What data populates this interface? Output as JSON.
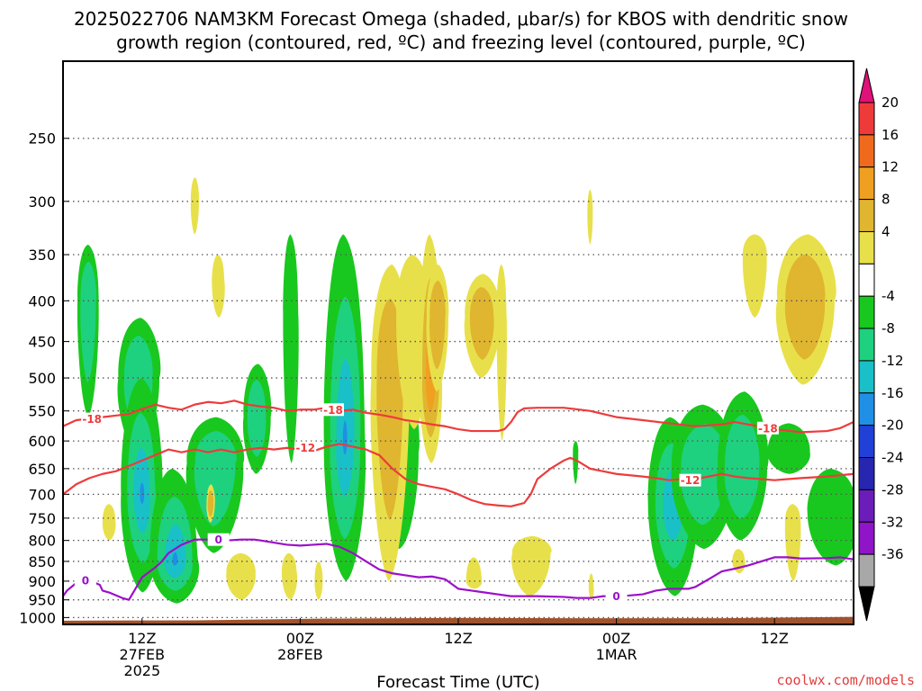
{
  "title_line1": "2025022706 NAM3KM Forecast Omega (shaded, μbar/s) for KBOS with dendritic snow",
  "title_line2": "growth region (contoured, red, ºC) and freezing level (contoured, purple, ºC)",
  "xlabel": "Forecast Time (UTC)",
  "credit": "coolwx.com/models",
  "chart_data": {
    "type": "heatmap",
    "y_scale": "log-pressure",
    "y_ticks": [
      250,
      300,
      350,
      400,
      450,
      500,
      550,
      600,
      650,
      700,
      750,
      800,
      850,
      900,
      950,
      1000
    ],
    "y_range": [
      200,
      1020
    ],
    "x_range_hours": [
      0,
      60
    ],
    "x_ticks": [
      {
        "hour": 6,
        "lines": [
          "12Z",
          "27FEB",
          "2025"
        ]
      },
      {
        "hour": 18,
        "lines": [
          "00Z",
          "28FEB"
        ]
      },
      {
        "hour": 30,
        "lines": [
          "12Z"
        ]
      },
      {
        "hour": 42,
        "lines": [
          "00Z",
          "1MAR"
        ]
      },
      {
        "hour": 54,
        "lines": [
          "12Z"
        ]
      }
    ],
    "colorbar": {
      "labels": [
        "20",
        "16",
        "12",
        "8",
        "4",
        "-4",
        "-8",
        "-12",
        "-16",
        "-20",
        "-24",
        "-28",
        "-32",
        "-36"
      ],
      "colors": [
        "#e0117a",
        "#ef3a3a",
        "#f06a1e",
        "#f0a020",
        "#e0b530",
        "#e8e04a",
        "#ffffff",
        "#19c81e",
        "#1ed17f",
        "#19c0c8",
        "#2090e6",
        "#2040d8",
        "#2626b0",
        "#6a1db8",
        "#9014c8",
        "#a8a8a8",
        "#000000"
      ]
    },
    "contours": {
      "dgz": {
        "color": "#ee3b3b",
        "labels": [
          "-18",
          "-18",
          "-18",
          "-12",
          "-12"
        ]
      },
      "freezing": {
        "color": "#9b10c8",
        "labels": [
          "0",
          "0",
          "0"
        ]
      }
    },
    "upward_motion_blobs": [
      {
        "hour": 1.9,
        "p": 400,
        "hw": 0.8,
        "p_top": 340,
        "p_bot": 560,
        "mag": 7
      },
      {
        "hour": 5.7,
        "p": 500,
        "hw": 1.5,
        "p_top": 420,
        "p_bot": 620,
        "mag": 7
      },
      {
        "hour": 6.0,
        "p": 700,
        "hw": 1.6,
        "p_top": 500,
        "p_bot": 930,
        "mag": 10
      },
      {
        "hour": 8.5,
        "p": 850,
        "hw": 1.9,
        "p_top": 650,
        "p_bot": 960,
        "mag": 10
      },
      {
        "hour": 11.5,
        "p": 640,
        "hw": 2.1,
        "p_top": 560,
        "p_bot": 830,
        "mag": 6
      },
      {
        "hour": 14.7,
        "p": 560,
        "hw": 1.0,
        "p_top": 480,
        "p_bot": 660,
        "mag": 6
      },
      {
        "hour": 17.3,
        "p": 420,
        "hw": 0.6,
        "p_top": 330,
        "p_bot": 640,
        "mag": 5
      },
      {
        "hour": 21.4,
        "p": 600,
        "hw": 1.6,
        "p_top": 330,
        "p_bot": 900,
        "mag": 11
      },
      {
        "hour": 25.6,
        "p": 620,
        "hw": 1.3,
        "p_top": 500,
        "p_bot": 820,
        "mag": 5
      },
      {
        "hour": 38.9,
        "p": 620,
        "hw": 0.2,
        "p_top": 600,
        "p_bot": 680,
        "mag": 5
      },
      {
        "hour": 46.3,
        "p": 720,
        "hw": 1.9,
        "p_top": 560,
        "p_bot": 940,
        "mag": 8
      },
      {
        "hour": 48.6,
        "p": 650,
        "hw": 2.4,
        "p_top": 540,
        "p_bot": 820,
        "mag": 6
      },
      {
        "hour": 51.5,
        "p": 650,
        "hw": 1.8,
        "p_top": 520,
        "p_bot": 800,
        "mag": 7
      },
      {
        "hour": 55.1,
        "p": 620,
        "hw": 1.6,
        "p_top": 570,
        "p_bot": 660,
        "mag": 5
      },
      {
        "hour": 58.5,
        "p": 740,
        "hw": 2.0,
        "p_top": 650,
        "p_bot": 860,
        "mag": 5
      }
    ],
    "downward_motion_blobs": [
      {
        "hour": 10.0,
        "p": 300,
        "hw": 0.3,
        "p_top": 280,
        "p_bot": 330,
        "mag": 5
      },
      {
        "hour": 11.8,
        "p": 380,
        "hw": 0.5,
        "p_top": 350,
        "p_bot": 420,
        "mag": 5
      },
      {
        "hour": 3.5,
        "p": 760,
        "hw": 0.5,
        "p_top": 720,
        "p_bot": 800,
        "mag": 5
      },
      {
        "hour": 11.2,
        "p": 720,
        "hw": 0.3,
        "p_top": 680,
        "p_bot": 760,
        "mag": 6
      },
      {
        "hour": 13.5,
        "p": 880,
        "hw": 1.1,
        "p_top": 830,
        "p_bot": 950,
        "mag": 5
      },
      {
        "hour": 17.2,
        "p": 880,
        "hw": 0.6,
        "p_top": 830,
        "p_bot": 950,
        "mag": 5
      },
      {
        "hour": 19.4,
        "p": 900,
        "hw": 0.3,
        "p_top": 850,
        "p_bot": 950,
        "mag": 5
      },
      {
        "hour": 24.8,
        "p": 500,
        "hw": 1.4,
        "p_top": 360,
        "p_bot": 900,
        "mag": 7
      },
      {
        "hour": 26.6,
        "p": 420,
        "hw": 1.3,
        "p_top": 350,
        "p_bot": 580,
        "mag": 5
      },
      {
        "hour": 27.9,
        "p": 500,
        "hw": 0.9,
        "p_top": 330,
        "p_bot": 640,
        "mag": 9
      },
      {
        "hour": 28.4,
        "p": 420,
        "hw": 0.8,
        "p_top": 360,
        "p_bot": 520,
        "mag": 6
      },
      {
        "hour": 31.8,
        "p": 420,
        "hw": 1.3,
        "p_top": 370,
        "p_bot": 500,
        "mag": 6
      },
      {
        "hour": 33.3,
        "p": 420,
        "hw": 0.4,
        "p_top": 360,
        "p_bot": 600,
        "mag": 5
      },
      {
        "hour": 31.2,
        "p": 900,
        "hw": 0.6,
        "p_top": 840,
        "p_bot": 920,
        "mag": 5
      },
      {
        "hour": 35.5,
        "p": 830,
        "hw": 1.4,
        "p_top": 790,
        "p_bot": 940,
        "mag": 5
      },
      {
        "hour": 40.0,
        "p": 310,
        "hw": 0.2,
        "p_top": 290,
        "p_bot": 340,
        "mag": 5
      },
      {
        "hour": 40.1,
        "p": 920,
        "hw": 0.2,
        "p_top": 880,
        "p_bot": 950,
        "mag": 5
      },
      {
        "hour": 52.5,
        "p": 350,
        "hw": 0.9,
        "p_top": 330,
        "p_bot": 420,
        "mag": 5
      },
      {
        "hour": 56.3,
        "p": 400,
        "hw": 2.1,
        "p_top": 330,
        "p_bot": 510,
        "mag": 6
      },
      {
        "hour": 55.4,
        "p": 760,
        "hw": 0.6,
        "p_top": 720,
        "p_bot": 900,
        "mag": 5
      },
      {
        "hour": 51.3,
        "p": 850,
        "hw": 0.5,
        "p_top": 820,
        "p_bot": 880,
        "mag": 5
      }
    ]
  }
}
